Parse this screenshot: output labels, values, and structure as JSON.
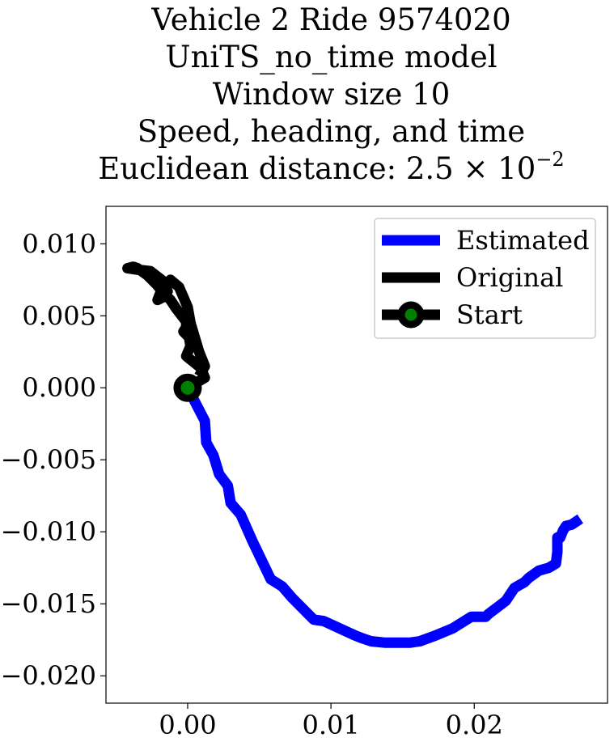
{
  "chart_data": {
    "type": "line",
    "title_lines": [
      "Vehicle 2 Ride 9574020",
      "UniTS_no_time model",
      "Window size 10",
      "Speed, heading, and time"
    ],
    "title_distance_prefix": "Euclidean distance: 2.5 × 10",
    "title_distance_exponent": "−2",
    "xlabel": "",
    "ylabel": "",
    "xlim": [
      -0.0057,
      0.0293
    ],
    "ylim": [
      -0.0219,
      0.0126
    ],
    "x_ticks": [
      0.0,
      0.01,
      0.02
    ],
    "x_tick_labels": [
      "0.00",
      "0.01",
      "0.02"
    ],
    "y_ticks": [
      0.01,
      0.005,
      0.0,
      -0.005,
      -0.01,
      -0.015,
      -0.02
    ],
    "y_tick_labels": [
      "0.010",
      "0.005",
      "0.000",
      "−0.005",
      "−0.010",
      "−0.015",
      "−0.020"
    ],
    "grid": false,
    "legend_position": "top-right",
    "series": [
      {
        "name": "Estimated",
        "color": "#0000ff",
        "x": [
          0.0,
          0.0012,
          0.0013,
          0.0018,
          0.0022,
          0.0028,
          0.003,
          0.0037,
          0.0045,
          0.0058,
          0.0066,
          0.0073,
          0.0082,
          0.0088,
          0.0095,
          0.0108,
          0.0117,
          0.0122,
          0.0128,
          0.0138,
          0.0148,
          0.0155,
          0.0162,
          0.0173,
          0.0185,
          0.0193,
          0.0198,
          0.0203,
          0.0208,
          0.021,
          0.0218,
          0.0222,
          0.0228,
          0.0235,
          0.0238,
          0.0245,
          0.0252,
          0.0257,
          0.0258,
          0.0258,
          0.026,
          0.0262,
          0.0264,
          0.0268,
          0.0274
        ],
        "y": [
          0.0,
          -0.0023,
          -0.0038,
          -0.0047,
          -0.006,
          -0.0068,
          -0.008,
          -0.0088,
          -0.0106,
          -0.0133,
          -0.0138,
          -0.0146,
          -0.0155,
          -0.0161,
          -0.0162,
          -0.0168,
          -0.0172,
          -0.0174,
          -0.0176,
          -0.0177,
          -0.0177,
          -0.0177,
          -0.0176,
          -0.0172,
          -0.0167,
          -0.0162,
          -0.0159,
          -0.0159,
          -0.0159,
          -0.0157,
          -0.0151,
          -0.0148,
          -0.0139,
          -0.0135,
          -0.0132,
          -0.0127,
          -0.0125,
          -0.0122,
          -0.0114,
          -0.0104,
          -0.0104,
          -0.0099,
          -0.0096,
          -0.0095,
          -0.0091
        ]
      },
      {
        "name": "Original",
        "color": "#000000",
        "x": [
          0.0,
          0.0012,
          0.0009,
          0.0004,
          -0.0001,
          0.0002,
          0.0001,
          -0.0003,
          -0.0001,
          -0.0001,
          -0.0008,
          -0.0012,
          -0.0016,
          -0.0022,
          -0.0028,
          -0.0035,
          -0.0038,
          -0.0042,
          -0.0035,
          -0.0026,
          -0.0017,
          -0.0014,
          -0.0017,
          -0.0021,
          -0.0019,
          -0.0012,
          -0.0006,
          -0.0003,
          0.0,
          0.0002,
          0.0005,
          0.0008,
          0.0012,
          0.0008
        ],
        "y": [
          0.0,
          0.0007,
          0.0014,
          0.0018,
          0.0022,
          0.0029,
          0.0035,
          0.0039,
          0.0042,
          0.0046,
          0.0055,
          0.0061,
          0.0065,
          0.0072,
          0.0078,
          0.0083,
          0.0084,
          0.0083,
          0.0082,
          0.0081,
          0.0074,
          0.0067,
          0.0063,
          0.0061,
          0.0066,
          0.0075,
          0.007,
          0.0063,
          0.0056,
          0.0045,
          0.0035,
          0.0025,
          0.0015,
          0.0008
        ]
      }
    ],
    "start_marker": {
      "name": "Start",
      "x": 0.0,
      "y": 0.0,
      "face_color": "#008000",
      "edge_color": "#000000"
    }
  }
}
